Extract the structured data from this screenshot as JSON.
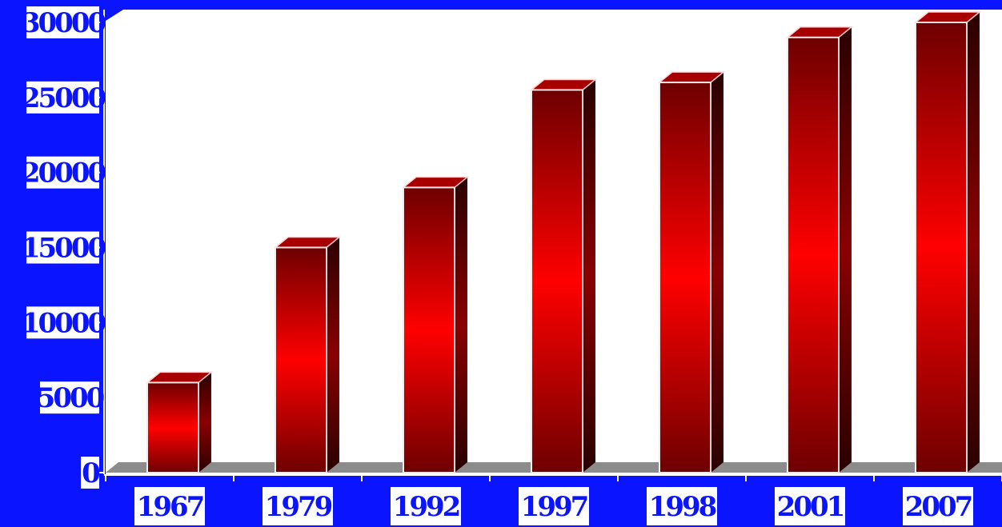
{
  "colors": {
    "background": "#0a14ff",
    "plot_area": "#ffffff",
    "floor": "#8c8c8c",
    "bar_bright": "#ff0000",
    "bar_dark": "#6e0000",
    "bar_side": "#3a0000",
    "bar_top": "#a80000",
    "label_bg": "#ffffff",
    "label_text": "#0a14ff"
  },
  "chart_data": {
    "type": "bar",
    "style": "3d-bar",
    "title": "",
    "xlabel": "",
    "ylabel": "",
    "categories": [
      "1967",
      "1979",
      "1992",
      "1997",
      "1998",
      "2001",
      "2007"
    ],
    "values": [
      6000,
      15000,
      19000,
      25500,
      26000,
      29000,
      30000
    ],
    "ylim": [
      0,
      30000
    ],
    "yticks": [
      "0",
      "5000",
      "10000",
      "15000",
      "20000",
      "25000",
      "30000"
    ],
    "ytick_values": [
      0,
      5000,
      10000,
      15000,
      20000,
      25000,
      30000
    ],
    "grid": false,
    "legend": "none"
  }
}
